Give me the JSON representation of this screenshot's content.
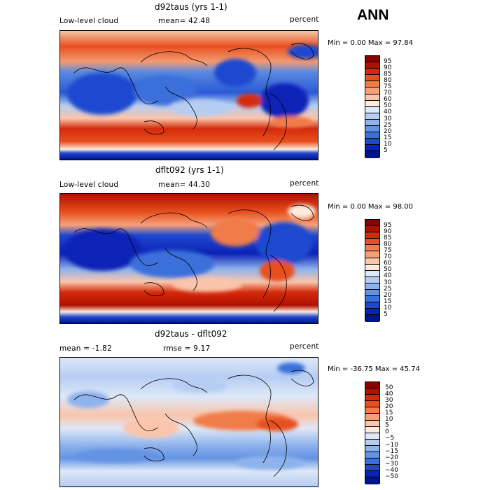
{
  "season": "ANN",
  "panels": [
    {
      "title": "d92taus (yrs 1-1)",
      "left_label": "Low-level cloud",
      "center_label": "mean=  42.48",
      "right_label": "percent",
      "minmax": "Min =    0.00 Max =   97.84",
      "colorbar": {
        "labels": [
          "95",
          "90",
          "85",
          "80",
          "75",
          "70",
          "60",
          "50",
          "40",
          "30",
          "25",
          "20",
          "15",
          "10",
          "5"
        ],
        "colors": [
          "#8b0000",
          "#b01000",
          "#d42a0a",
          "#e8501e",
          "#f07c4a",
          "#f6a07a",
          "#fac5ab",
          "#fdebdd",
          "#dde8f8",
          "#b6cdf2",
          "#8eb2ec",
          "#6393e3",
          "#3b6fdb",
          "#1f48cf",
          "#0a22b6",
          "#00138c"
        ]
      }
    },
    {
      "title": "dflt092 (yrs 1-1)",
      "left_label": "Low-level cloud",
      "center_label": "mean=  44.30",
      "right_label": "percent",
      "minmax": "Min =    0.00 Max =   98.00",
      "colorbar": {
        "labels": [
          "95",
          "90",
          "85",
          "80",
          "75",
          "70",
          "60",
          "50",
          "40",
          "30",
          "25",
          "20",
          "15",
          "10",
          "5"
        ],
        "colors": [
          "#8b0000",
          "#b01000",
          "#d42a0a",
          "#e8501e",
          "#f07c4a",
          "#f6a07a",
          "#fac5ab",
          "#fdebdd",
          "#dde8f8",
          "#b6cdf2",
          "#8eb2ec",
          "#6393e3",
          "#3b6fdb",
          "#1f48cf",
          "#0a22b6",
          "#00138c"
        ]
      }
    },
    {
      "title": "d92taus - dflt092",
      "left_label": "mean =   -1.82",
      "center_label": "rmse =    9.17",
      "right_label": "percent",
      "minmax": "Min = -36.75 Max =  45.74",
      "colorbar": {
        "labels": [
          "50",
          "40",
          "30",
          "20",
          "15",
          "10",
          "5",
          "0",
          "−5",
          "−10",
          "−15",
          "−20",
          "−30",
          "−40",
          "−50"
        ],
        "colors": [
          "#8b0000",
          "#b01000",
          "#d42a0a",
          "#e8501e",
          "#f07c4a",
          "#f6a07a",
          "#fac5ab",
          "#fdebdd",
          "#dde8f8",
          "#b6cdf2",
          "#8eb2ec",
          "#6393e3",
          "#3b6fdb",
          "#1f48cf",
          "#0a22b6",
          "#00138c"
        ]
      }
    }
  ]
}
